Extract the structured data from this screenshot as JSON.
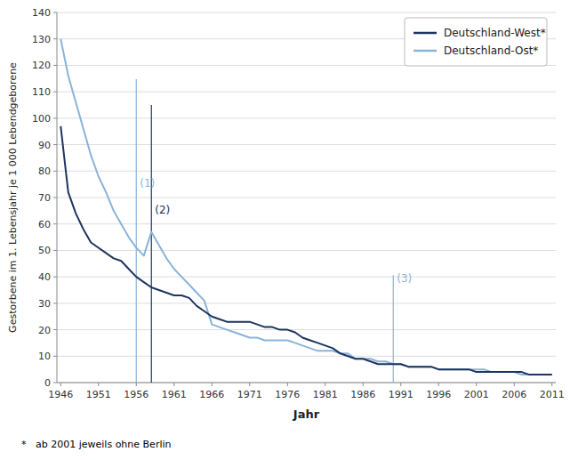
{
  "chart_data": {
    "type": "line",
    "xlabel": "Jahr",
    "ylabel": "Gestorbene im 1. Lebensjahr je 1 000 Lebendgeborene",
    "footnote": "*   ab 2001 jeweils ohne Berlin",
    "x": [
      1946,
      1947,
      1948,
      1949,
      1950,
      1951,
      1952,
      1953,
      1954,
      1955,
      1956,
      1957,
      1958,
      1959,
      1960,
      1961,
      1962,
      1963,
      1964,
      1965,
      1966,
      1967,
      1968,
      1969,
      1970,
      1971,
      1972,
      1973,
      1974,
      1975,
      1976,
      1977,
      1978,
      1979,
      1980,
      1981,
      1982,
      1983,
      1984,
      1985,
      1986,
      1987,
      1988,
      1989,
      1990,
      1991,
      1992,
      1993,
      1994,
      1995,
      1996,
      1997,
      1998,
      1999,
      2000,
      2001,
      2002,
      2003,
      2004,
      2005,
      2006,
      2007,
      2008,
      2009,
      2010,
      2011
    ],
    "series": [
      {
        "name": "Deutschland-West*",
        "color": "#1c3560",
        "values": [
          97,
          72,
          64,
          58,
          53,
          51,
          49,
          47,
          46,
          43,
          40,
          38,
          36,
          35,
          34,
          33,
          33,
          32,
          29,
          27,
          25,
          24,
          23,
          23,
          23,
          23,
          22,
          21,
          21,
          20,
          20,
          19,
          17,
          16,
          15,
          14,
          13,
          11,
          10,
          9,
          9,
          8,
          7,
          7,
          7,
          7,
          6,
          6,
          6,
          6,
          5,
          5,
          5,
          5,
          5,
          4,
          4,
          4,
          4,
          4,
          4,
          4,
          3,
          3,
          3,
          3
        ]
      },
      {
        "name": "Deutschland-Ost*",
        "color": "#8ab4d8",
        "values": [
          130,
          116,
          106,
          96,
          86,
          78,
          72,
          65,
          60,
          55,
          51,
          48,
          57,
          52,
          47,
          43,
          40,
          37,
          34,
          31,
          22,
          21,
          20,
          19,
          18,
          17,
          17,
          16,
          16,
          16,
          16,
          15,
          14,
          13,
          12,
          12,
          12,
          11,
          11,
          9,
          9,
          9,
          8,
          8,
          7,
          7,
          6,
          6,
          6,
          6,
          5,
          5,
          5,
          5,
          5,
          5,
          5,
          4,
          4,
          4,
          4,
          3,
          3,
          3,
          3,
          3
        ]
      }
    ],
    "annotations": [
      {
        "label": "(1)",
        "x": 1956,
        "y": 74,
        "line_end": 114.8,
        "color": "#8ab4d8"
      },
      {
        "label": "(2)",
        "x": 1958,
        "y": 64,
        "line_end": 105,
        "color": "#1c3560"
      },
      {
        "label": "(3)",
        "x": 1990,
        "y": 38,
        "line_end": 40.6,
        "color": "#8ab4d8"
      }
    ],
    "xlim": [
      1945.5,
      2011.5
    ],
    "xticks": [
      1946,
      1951,
      1956,
      1961,
      1966,
      1971,
      1976,
      1981,
      1986,
      1991,
      1996,
      2001,
      2006,
      2011
    ],
    "ylim": [
      0,
      140
    ],
    "yticks": [
      0,
      10,
      20,
      30,
      40,
      50,
      60,
      70,
      80,
      90,
      100,
      110,
      120,
      130,
      140
    ],
    "grid": true,
    "legend": "upper right"
  }
}
